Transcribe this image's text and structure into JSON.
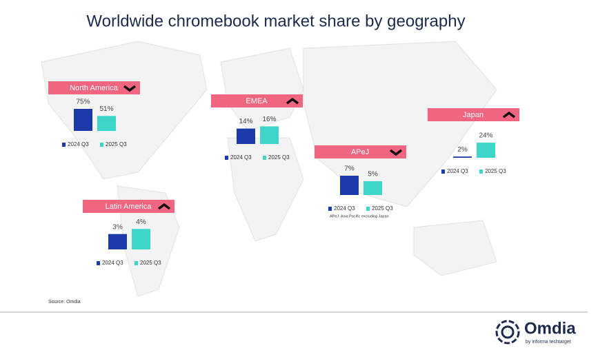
{
  "title": "Worldwide chromebook market share by geography",
  "chart_data": [
    {
      "type": "bar",
      "title": "North America",
      "trend": "down",
      "ylim": [
        0,
        75
      ],
      "series": [
        {
          "name": "2024 Q3",
          "color": "#1c3aa9",
          "values": [
            75
          ],
          "value_labels": [
            "75%"
          ]
        },
        {
          "name": "2025 Q3",
          "color": "#3ed6c8",
          "values": [
            51
          ],
          "value_labels": [
            "51%"
          ]
        }
      ]
    },
    {
      "type": "bar",
      "title": "EMEA",
      "trend": "up",
      "ylim": [
        0,
        20
      ],
      "series": [
        {
          "name": "2024 Q3",
          "color": "#1c3aa9",
          "values": [
            14
          ],
          "value_labels": [
            "14%"
          ]
        },
        {
          "name": "2025 Q3",
          "color": "#3ed6c8",
          "values": [
            16
          ],
          "value_labels": [
            "16%"
          ]
        }
      ]
    },
    {
      "type": "bar",
      "title": "Japan",
      "trend": "up",
      "ylim": [
        0,
        35
      ],
      "series": [
        {
          "name": "2024 Q3",
          "color": "#1c3aa9",
          "values": [
            2
          ],
          "value_labels": [
            "2%"
          ]
        },
        {
          "name": "2025 Q3",
          "color": "#3ed6c8",
          "values": [
            24
          ],
          "value_labels": [
            "24%"
          ]
        }
      ]
    },
    {
      "type": "bar",
      "title": "APeJ",
      "trend": "down",
      "ylim": [
        0,
        8
      ],
      "note": "APeJ: Asia Pacific excluding Japan",
      "series": [
        {
          "name": "2024 Q3",
          "color": "#1c3aa9",
          "values": [
            7
          ],
          "value_labels": [
            "7%"
          ]
        },
        {
          "name": "2025 Q3",
          "color": "#3ed6c8",
          "values": [
            5
          ],
          "value_labels": [
            "5%"
          ]
        }
      ]
    },
    {
      "type": "bar",
      "title": "Latin America",
      "trend": "up",
      "ylim": [
        0,
        4.3
      ],
      "series": [
        {
          "name": "2024 Q3",
          "color": "#1c3aa9",
          "values": [
            3
          ],
          "value_labels": [
            "3%"
          ]
        },
        {
          "name": "2025 Q3",
          "color": "#3ed6c8",
          "values": [
            4
          ],
          "value_labels": [
            "4%"
          ]
        }
      ]
    }
  ],
  "source": "Source: Omdia",
  "logo": {
    "name": "Omdia",
    "tagline": "by informa techtarget"
  }
}
